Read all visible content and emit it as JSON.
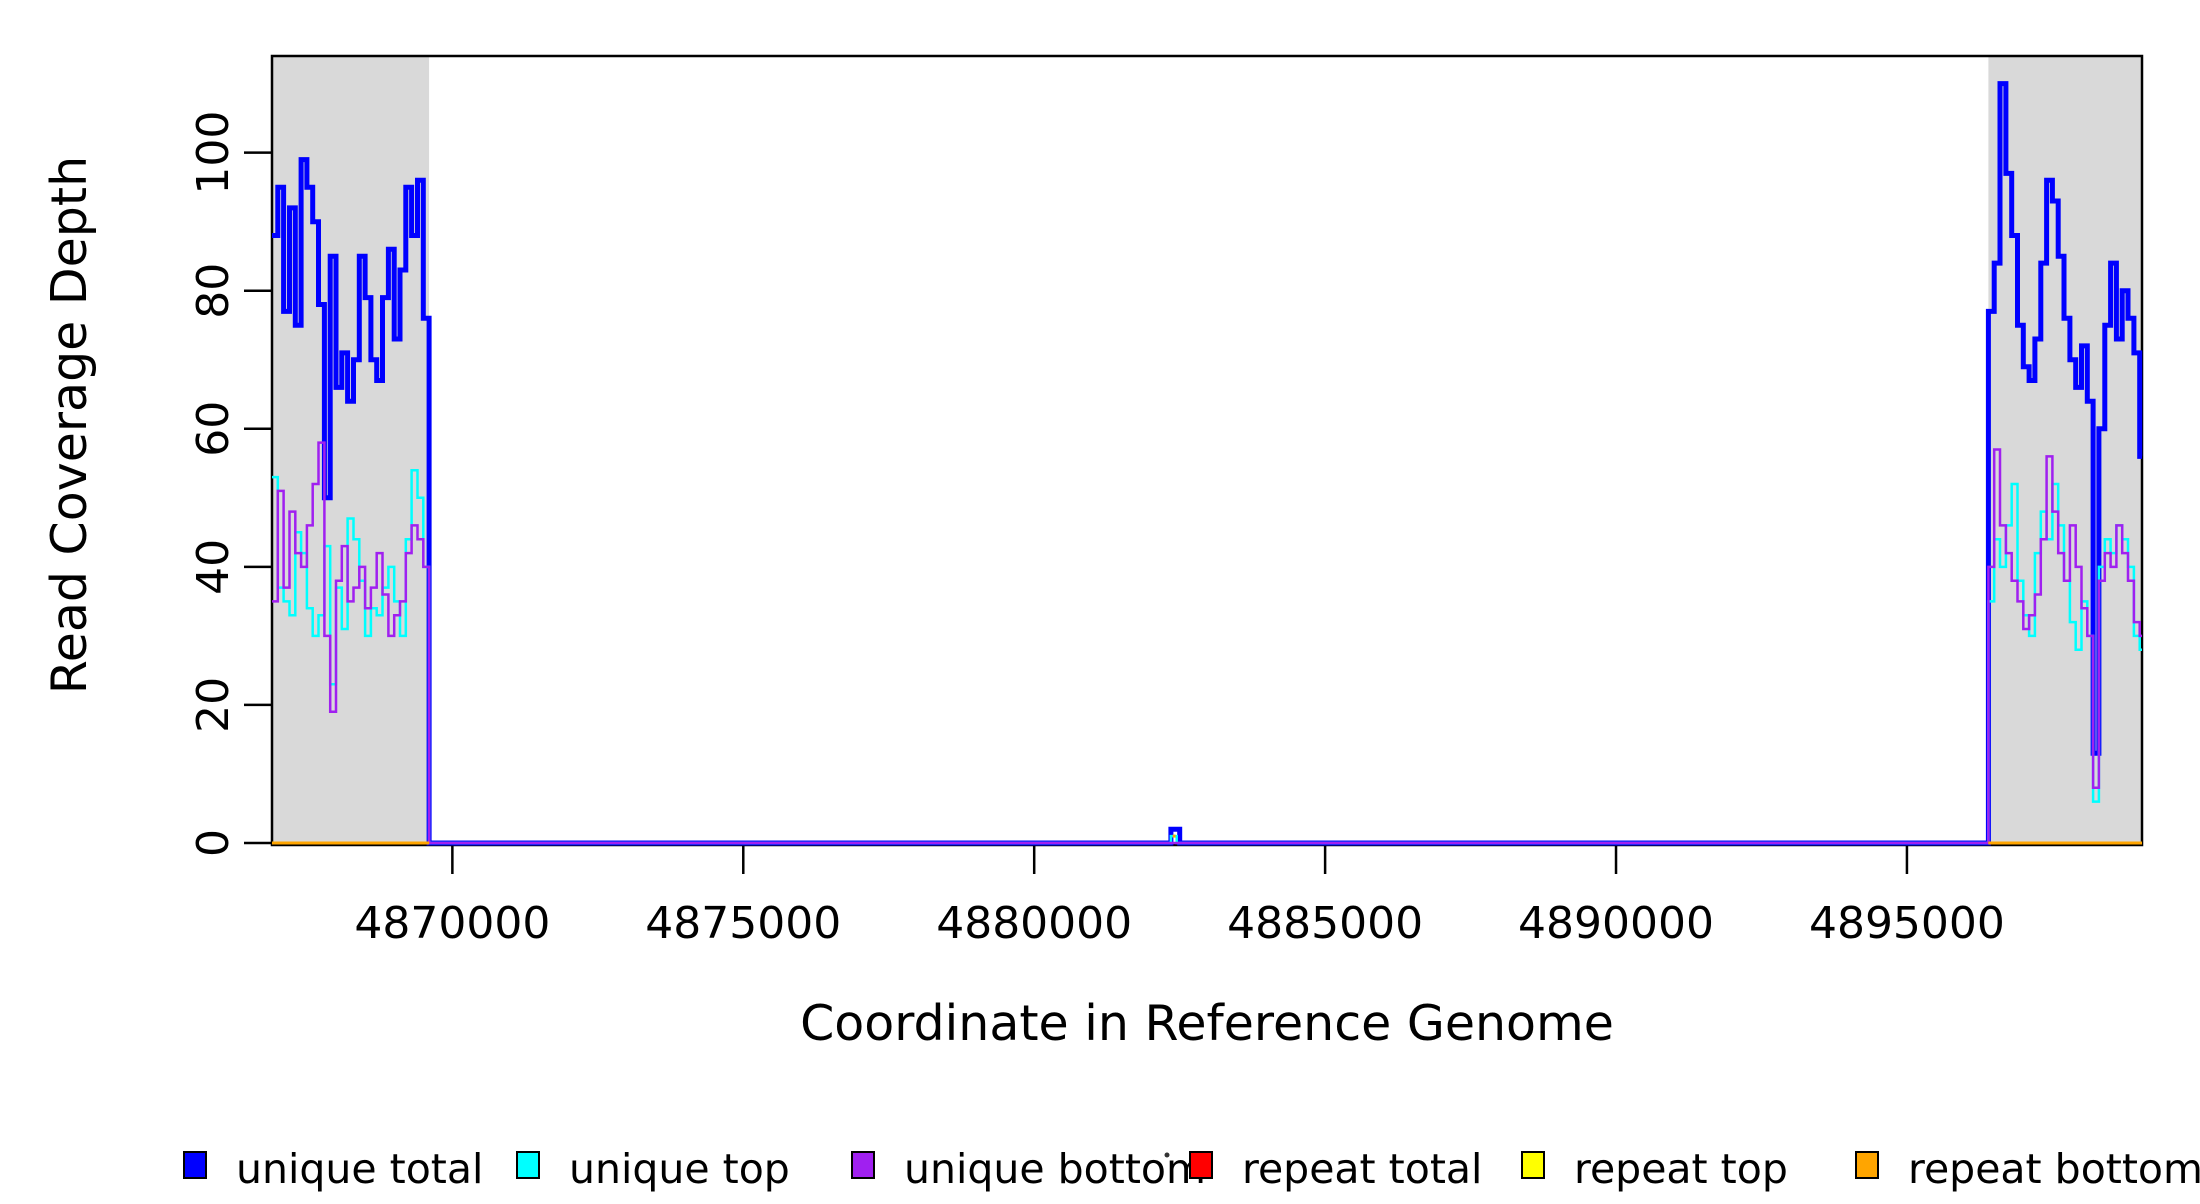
{
  "colors": {
    "background": "#FFFFFF",
    "region_gray": "#D9D9D9",
    "axis_black": "#000000",
    "unique_total": "#0000FF",
    "unique_top": "#00FFFF",
    "unique_bottom": "#A020F0",
    "repeat_total": "#FF0000",
    "repeat_top": "#FFFF00",
    "repeat_bottom": "#FFA500"
  },
  "legend": [
    {
      "label": "unique total",
      "color": "#0000FF"
    },
    {
      "label": "unique top",
      "color": "#00FFFF"
    },
    {
      "label": "unique bottom",
      "color": "#A020F0"
    },
    {
      "label": "repeat total",
      "color": "#FF0000"
    },
    {
      "label": "repeat top",
      "color": "#FFFF00"
    },
    {
      "label": "repeat bottom",
      "color": "#FFA500"
    }
  ],
  "chart_data": {
    "type": "line",
    "line_style": "step",
    "title": "",
    "xlabel": "Coordinate in Reference Genome",
    "ylabel": "Read Coverage Depth",
    "xlim": [
      4866900,
      4899040
    ],
    "ylim": [
      0,
      114
    ],
    "grid": false,
    "legend_position": "bottom",
    "x_ticks": [
      4870000,
      4875000,
      4880000,
      4885000,
      4890000,
      4895000
    ],
    "x_tick_labels": [
      "4870000",
      "4875000",
      "4880000",
      "4885000",
      "4890000",
      "4895000"
    ],
    "y_ticks": [
      0,
      20,
      40,
      60,
      80,
      100
    ],
    "y_tick_labels": [
      "0",
      "20",
      "40",
      "60",
      "80",
      "100"
    ],
    "bin_size": 100,
    "highlight_regions": [
      {
        "start": 4866900,
        "end": 4869600
      },
      {
        "start": 4896400,
        "end": 4899040
      }
    ],
    "series": [
      {
        "name": "unique total",
        "color": "#0000FF",
        "width": 5,
        "segments": [
          {
            "end": 4899040,
            "steps": [
              [
                4866900,
                88
              ],
              [
                4867000,
                95
              ],
              [
                4867100,
                77
              ],
              [
                4867200,
                92
              ],
              [
                4867300,
                75
              ],
              [
                4867400,
                99
              ],
              [
                4867500,
                95
              ],
              [
                4867600,
                90
              ],
              [
                4867700,
                78
              ],
              [
                4867800,
                50
              ],
              [
                4867900,
                85
              ],
              [
                4868000,
                66
              ],
              [
                4868100,
                71
              ],
              [
                4868200,
                64
              ],
              [
                4868300,
                70
              ],
              [
                4868400,
                85
              ],
              [
                4868500,
                79
              ],
              [
                4868600,
                70
              ],
              [
                4868700,
                67
              ],
              [
                4868800,
                79
              ],
              [
                4868900,
                86
              ],
              [
                4869000,
                73
              ],
              [
                4869100,
                83
              ],
              [
                4869200,
                95
              ],
              [
                4869300,
                88
              ],
              [
                4869400,
                96
              ],
              [
                4869500,
                76
              ],
              [
                4869600,
                0
              ],
              [
                4882350,
                2
              ],
              [
                4882500,
                0
              ],
              [
                4896400,
                77
              ],
              [
                4896500,
                84
              ],
              [
                4896600,
                110
              ],
              [
                4896700,
                97
              ],
              [
                4896800,
                88
              ],
              [
                4896900,
                75
              ],
              [
                4897000,
                69
              ],
              [
                4897100,
                67
              ],
              [
                4897200,
                73
              ],
              [
                4897300,
                84
              ],
              [
                4897400,
                96
              ],
              [
                4897500,
                93
              ],
              [
                4897600,
                85
              ],
              [
                4897700,
                76
              ],
              [
                4897800,
                70
              ],
              [
                4897900,
                66
              ],
              [
                4898000,
                72
              ],
              [
                4898100,
                64
              ],
              [
                4898200,
                13
              ],
              [
                4898300,
                60
              ],
              [
                4898400,
                75
              ],
              [
                4898500,
                84
              ],
              [
                4898600,
                73
              ],
              [
                4898700,
                80
              ],
              [
                4898800,
                76
              ],
              [
                4898900,
                71
              ],
              [
                4899000,
                56
              ]
            ]
          }
        ]
      },
      {
        "name": "unique top",
        "color": "#00FFFF",
        "width": 2.5,
        "segments": [
          {
            "end": 4899040,
            "steps": [
              [
                4866900,
                53
              ],
              [
                4867000,
                37
              ],
              [
                4867100,
                35
              ],
              [
                4867200,
                33
              ],
              [
                4867300,
                45
              ],
              [
                4867400,
                42
              ],
              [
                4867500,
                34
              ],
              [
                4867600,
                30
              ],
              [
                4867700,
                33
              ],
              [
                4867800,
                43
              ],
              [
                4867900,
                23
              ],
              [
                4868000,
                37
              ],
              [
                4868100,
                31
              ],
              [
                4868200,
                47
              ],
              [
                4868300,
                44
              ],
              [
                4868400,
                38
              ],
              [
                4868500,
                30
              ],
              [
                4868600,
                34
              ],
              [
                4868700,
                33
              ],
              [
                4868800,
                37
              ],
              [
                4868900,
                40
              ],
              [
                4869000,
                35
              ],
              [
                4869100,
                30
              ],
              [
                4869200,
                44
              ],
              [
                4869300,
                54
              ],
              [
                4869400,
                50
              ],
              [
                4869500,
                40
              ],
              [
                4869600,
                0
              ],
              [
                4882350,
                1
              ],
              [
                4882450,
                0
              ],
              [
                4896400,
                35
              ],
              [
                4896500,
                44
              ],
              [
                4896600,
                40
              ],
              [
                4896700,
                46
              ],
              [
                4896800,
                52
              ],
              [
                4896900,
                38
              ],
              [
                4897000,
                33
              ],
              [
                4897100,
                30
              ],
              [
                4897200,
                42
              ],
              [
                4897300,
                48
              ],
              [
                4897400,
                44
              ],
              [
                4897500,
                52
              ],
              [
                4897600,
                46
              ],
              [
                4897700,
                38
              ],
              [
                4897800,
                32
              ],
              [
                4897900,
                28
              ],
              [
                4898000,
                35
              ],
              [
                4898100,
                30
              ],
              [
                4898200,
                6
              ],
              [
                4898300,
                40
              ],
              [
                4898400,
                44
              ],
              [
                4898500,
                42
              ],
              [
                4898600,
                46
              ],
              [
                4898700,
                44
              ],
              [
                4898800,
                40
              ],
              [
                4898900,
                30
              ],
              [
                4899000,
                28
              ]
            ]
          }
        ]
      },
      {
        "name": "unique bottom",
        "color": "#A020F0",
        "width": 2.5,
        "segments": [
          {
            "end": 4899040,
            "steps": [
              [
                4866900,
                35
              ],
              [
                4867000,
                51
              ],
              [
                4867100,
                37
              ],
              [
                4867200,
                48
              ],
              [
                4867300,
                42
              ],
              [
                4867400,
                40
              ],
              [
                4867500,
                46
              ],
              [
                4867600,
                52
              ],
              [
                4867700,
                58
              ],
              [
                4867800,
                30
              ],
              [
                4867900,
                19
              ],
              [
                4868000,
                38
              ],
              [
                4868100,
                43
              ],
              [
                4868200,
                35
              ],
              [
                4868300,
                37
              ],
              [
                4868400,
                40
              ],
              [
                4868500,
                34
              ],
              [
                4868600,
                37
              ],
              [
                4868700,
                42
              ],
              [
                4868800,
                36
              ],
              [
                4868900,
                30
              ],
              [
                4869000,
                33
              ],
              [
                4869100,
                35
              ],
              [
                4869200,
                42
              ],
              [
                4869300,
                46
              ],
              [
                4869400,
                44
              ],
              [
                4869500,
                40
              ],
              [
                4869600,
                0
              ],
              [
                4896400,
                40
              ],
              [
                4896500,
                57
              ],
              [
                4896600,
                46
              ],
              [
                4896700,
                42
              ],
              [
                4896800,
                38
              ],
              [
                4896900,
                35
              ],
              [
                4897000,
                31
              ],
              [
                4897100,
                33
              ],
              [
                4897200,
                36
              ],
              [
                4897300,
                44
              ],
              [
                4897400,
                56
              ],
              [
                4897500,
                48
              ],
              [
                4897600,
                42
              ],
              [
                4897700,
                38
              ],
              [
                4897800,
                46
              ],
              [
                4897900,
                40
              ],
              [
                4898000,
                34
              ],
              [
                4898100,
                30
              ],
              [
                4898200,
                8
              ],
              [
                4898300,
                38
              ],
              [
                4898400,
                42
              ],
              [
                4898500,
                40
              ],
              [
                4898600,
                46
              ],
              [
                4898700,
                42
              ],
              [
                4898800,
                38
              ],
              [
                4898900,
                32
              ],
              [
                4899000,
                30
              ]
            ]
          }
        ]
      },
      {
        "name": "repeat total",
        "color": "#FF0000",
        "width": 2.5,
        "segments": [
          {
            "end": 4869600,
            "steps": [
              [
                4866900,
                0
              ]
            ]
          },
          {
            "end": 4899040,
            "steps": [
              [
                4896400,
                0
              ]
            ]
          }
        ]
      },
      {
        "name": "repeat top",
        "color": "#FFFF00",
        "width": 2.5,
        "segments": [
          {
            "end": 4869600,
            "steps": [
              [
                4866900,
                0
              ]
            ]
          },
          {
            "end": 4899040,
            "steps": [
              [
                4896400,
                0
              ]
            ]
          }
        ]
      },
      {
        "name": "repeat bottom",
        "color": "#FFA500",
        "width": 3,
        "segments": [
          {
            "end": 4869600,
            "steps": [
              [
                4866900,
                0
              ]
            ]
          },
          {
            "end": 4882430,
            "steps": [
              [
                4882380,
                1
              ]
            ]
          },
          {
            "end": 4899040,
            "steps": [
              [
                4896400,
                0
              ]
            ]
          }
        ]
      }
    ]
  }
}
